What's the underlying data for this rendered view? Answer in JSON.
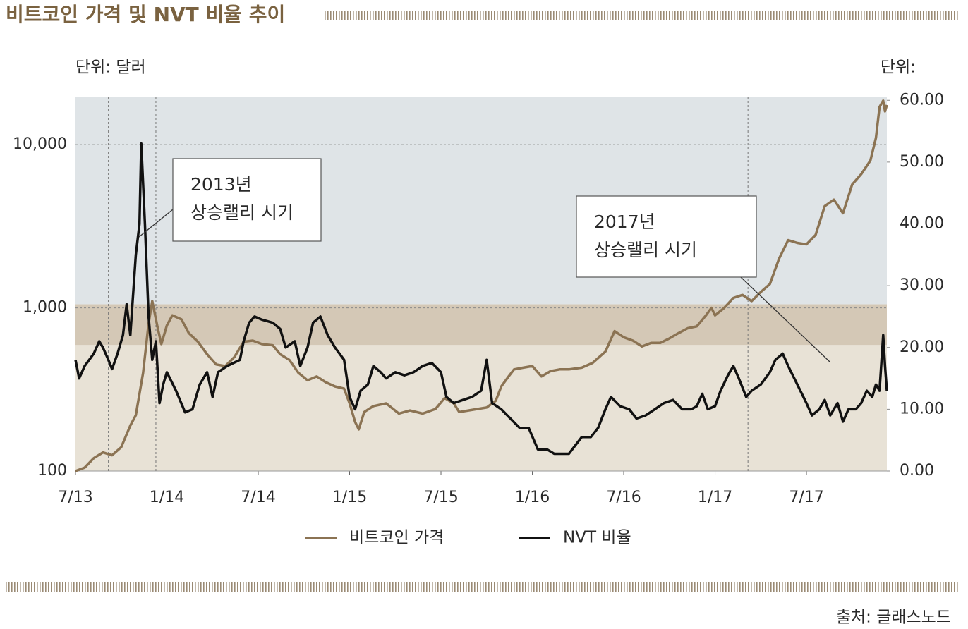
{
  "chart_data": {
    "type": "line",
    "title": "비트코인 가격 및 NVT 비율 추이",
    "y_unit_label": "단위: 달러",
    "y2_unit_label": "단위:",
    "source": "출처: 글래스노드",
    "xlim": [
      2013.5,
      2017.94
    ],
    "xticks": [
      {
        "value": 2013.5,
        "label": "7/13"
      },
      {
        "value": 2014.0,
        "label": "1/14"
      },
      {
        "value": 2014.5,
        "label": "7/14"
      },
      {
        "value": 2015.0,
        "label": "1/15"
      },
      {
        "value": 2015.5,
        "label": "7/15"
      },
      {
        "value": 2016.0,
        "label": "1/16"
      },
      {
        "value": 2016.5,
        "label": "7/16"
      },
      {
        "value": 2017.0,
        "label": "1/17"
      },
      {
        "value": 2017.5,
        "label": "7/17"
      }
    ],
    "ylim": [
      100,
      19700
    ],
    "y_log_scale": true,
    "yticks": [
      100,
      {
        "value": 1000,
        "label": "1,000"
      },
      {
        "value": 10000,
        "label": "10,000"
      }
    ],
    "y2lim": [
      0,
      60.6
    ],
    "y2ticks": [
      {
        "value": 0,
        "label": "0.00"
      },
      {
        "value": 10,
        "label": "10.00"
      },
      {
        "value": 20,
        "label": "20.00"
      },
      {
        "value": 30,
        "label": "30.00"
      },
      {
        "value": 40,
        "label": "40.00"
      },
      {
        "value": 50,
        "label": "50.00"
      },
      {
        "value": 60,
        "label": "60.00"
      }
    ],
    "grid": true,
    "shaded_regions": [
      {
        "y2": [
          0,
          20.4
        ],
        "color": "#e8e2d6"
      },
      {
        "y2": [
          20.4,
          27
        ],
        "color": "#d4c8b6"
      },
      {
        "y2": [
          27,
          60.6
        ],
        "color": "#dfe4e7"
      }
    ],
    "reference_lines_x": [
      2013.68,
      2013.94,
      2017.18
    ],
    "annotations": [
      {
        "lines": [
          "2013년",
          "상승랠리 시기"
        ]
      },
      {
        "lines": [
          "2017년",
          "상승랠리 시기"
        ]
      }
    ],
    "series": [
      {
        "name": "비트코인 가격",
        "color": "#8b7353",
        "axis": "y",
        "x": [
          2013.5,
          2013.55,
          2013.6,
          2013.65,
          2013.7,
          2013.75,
          2013.8,
          2013.83,
          2013.87,
          2013.9,
          2013.92,
          2013.95,
          2013.97,
          2014.0,
          2014.03,
          2014.08,
          2014.12,
          2014.17,
          2014.22,
          2014.27,
          2014.32,
          2014.37,
          2014.42,
          2014.47,
          2014.52,
          2014.58,
          2014.62,
          2014.67,
          2014.72,
          2014.77,
          2014.82,
          2014.87,
          2014.92,
          2014.97,
          2015.0,
          2015.03,
          2015.05,
          2015.08,
          2015.13,
          2015.2,
          2015.27,
          2015.33,
          2015.4,
          2015.47,
          2015.52,
          2015.57,
          2015.6,
          2015.65,
          2015.7,
          2015.75,
          2015.8,
          2015.83,
          2015.87,
          2015.9,
          2015.95,
          2016.0,
          2016.05,
          2016.1,
          2016.15,
          2016.2,
          2016.27,
          2016.33,
          2016.4,
          2016.45,
          2016.5,
          2016.55,
          2016.6,
          2016.65,
          2016.7,
          2016.75,
          2016.8,
          2016.85,
          2016.9,
          2016.95,
          2016.98,
          2017.0,
          2017.05,
          2017.1,
          2017.15,
          2017.2,
          2017.25,
          2017.3,
          2017.35,
          2017.4,
          2017.45,
          2017.5,
          2017.55,
          2017.6,
          2017.65,
          2017.7,
          2017.75,
          2017.8,
          2017.85,
          2017.88,
          2017.9,
          2017.92,
          2017.93,
          2017.94
        ],
        "values": [
          100,
          105,
          120,
          130,
          125,
          140,
          190,
          220,
          400,
          800,
          1100,
          750,
          600,
          780,
          900,
          850,
          700,
          620,
          520,
          450,
          440,
          500,
          620,
          630,
          600,
          590,
          520,
          480,
          400,
          360,
          380,
          350,
          330,
          320,
          260,
          200,
          180,
          230,
          250,
          260,
          225,
          235,
          225,
          240,
          280,
          260,
          230,
          235,
          240,
          245,
          270,
          330,
          380,
          420,
          430,
          440,
          380,
          410,
          420,
          420,
          430,
          460,
          540,
          720,
          660,
          630,
          580,
          610,
          610,
          650,
          700,
          750,
          770,
          900,
          1000,
          900,
          1000,
          1150,
          1200,
          1100,
          1250,
          1400,
          2000,
          2600,
          2500,
          2450,
          2800,
          4200,
          4600,
          3800,
          5700,
          6600,
          8000,
          11000,
          17000,
          18600,
          16000,
          17500
        ]
      },
      {
        "name": "NVT 비율",
        "color": "#111111",
        "axis": "y2",
        "x": [
          2013.5,
          2013.52,
          2013.55,
          2013.6,
          2013.63,
          2013.65,
          2013.68,
          2013.7,
          2013.73,
          2013.76,
          2013.78,
          2013.8,
          2013.83,
          2013.85,
          2013.86,
          2013.88,
          2013.9,
          2013.92,
          2013.94,
          2013.96,
          2013.98,
          2014.0,
          2014.05,
          2014.1,
          2014.14,
          2014.18,
          2014.22,
          2014.25,
          2014.28,
          2014.33,
          2014.4,
          2014.42,
          2014.45,
          2014.48,
          2014.52,
          2014.58,
          2014.62,
          2014.65,
          2014.7,
          2014.73,
          2014.77,
          2014.8,
          2014.84,
          2014.88,
          2014.92,
          2014.97,
          2015.0,
          2015.03,
          2015.06,
          2015.1,
          2015.13,
          2015.17,
          2015.2,
          2015.25,
          2015.3,
          2015.35,
          2015.4,
          2015.45,
          2015.5,
          2015.53,
          2015.57,
          2015.62,
          2015.67,
          2015.72,
          2015.75,
          2015.78,
          2015.83,
          2015.88,
          2015.93,
          2015.98,
          2016.03,
          2016.08,
          2016.12,
          2016.2,
          2016.27,
          2016.32,
          2016.36,
          2016.4,
          2016.43,
          2016.48,
          2016.53,
          2016.57,
          2016.62,
          2016.67,
          2016.72,
          2016.77,
          2016.82,
          2016.87,
          2016.9,
          2016.93,
          2016.96,
          2017.0,
          2017.03,
          2017.07,
          2017.1,
          2017.13,
          2017.17,
          2017.2,
          2017.25,
          2017.3,
          2017.33,
          2017.37,
          2017.4,
          2017.45,
          2017.5,
          2017.53,
          2017.57,
          2017.6,
          2017.63,
          2017.67,
          2017.7,
          2017.73,
          2017.77,
          2017.8,
          2017.83,
          2017.86,
          2017.88,
          2017.9,
          2017.92,
          2017.93,
          2017.94
        ],
        "values": [
          18,
          15,
          17,
          19,
          21,
          20,
          18,
          16.5,
          19,
          22,
          27,
          22,
          35,
          40,
          53,
          40,
          25,
          18,
          21,
          11,
          14,
          16,
          13,
          9.5,
          10,
          14,
          16,
          12,
          16,
          17,
          18,
          21,
          24,
          25,
          24.5,
          24,
          23,
          20,
          21,
          17,
          20,
          24,
          25,
          22,
          20,
          18,
          12,
          10,
          13,
          14,
          17,
          16,
          15,
          16,
          15.5,
          16,
          17,
          17.5,
          16,
          12,
          11,
          11.5,
          12,
          13,
          18,
          11,
          10,
          8.5,
          7,
          7,
          3.5,
          3.5,
          2.8,
          2.8,
          5.5,
          5.5,
          7,
          10,
          12,
          10.5,
          10,
          8.5,
          9,
          10,
          11,
          11.5,
          10,
          10,
          10.5,
          12.5,
          10,
          10.5,
          13,
          15.5,
          17,
          15,
          12,
          13,
          14,
          16,
          18,
          19,
          17,
          14,
          11,
          9,
          10,
          11.5,
          9,
          11,
          8,
          10,
          10,
          11,
          13,
          12,
          14,
          13,
          22,
          17,
          13
        ]
      }
    ]
  }
}
